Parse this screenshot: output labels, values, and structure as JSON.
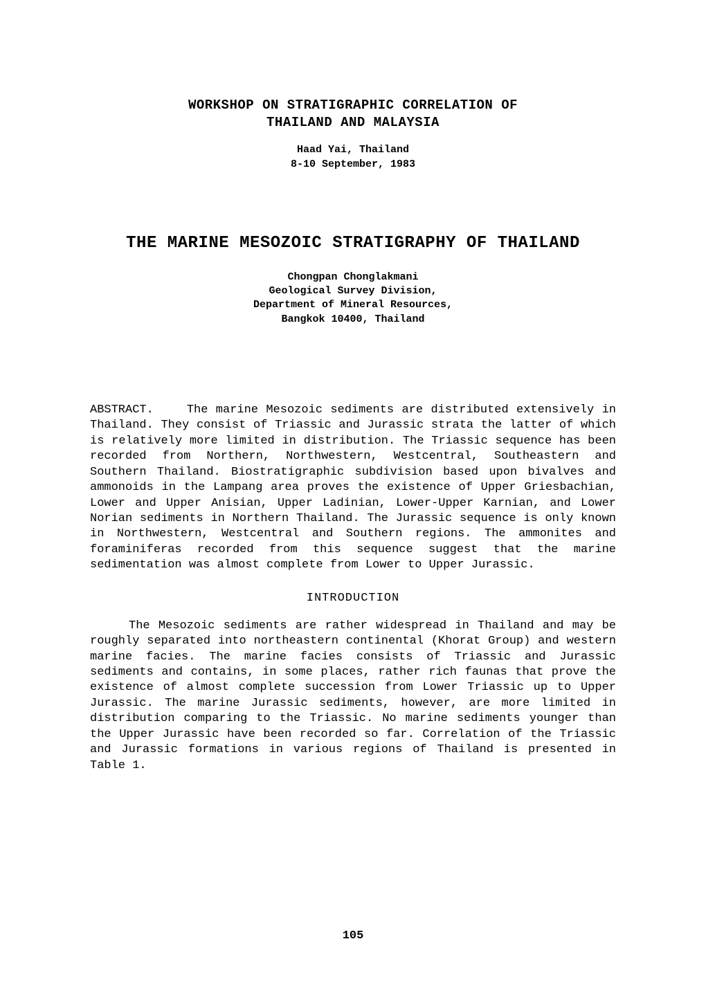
{
  "workshop": {
    "heading_line1": "WORKSHOP ON STRATIGRAPHIC CORRELATION OF",
    "heading_line2": "THAILAND AND MALAYSIA",
    "location": "Haad Yai, Thailand",
    "dates": "8-10 September, 1983"
  },
  "paper": {
    "title": "THE MARINE MESOZOIC STRATIGRAPHY OF THAILAND",
    "author": "Chongpan Chonglakmani",
    "affiliation_line1": "Geological Survey Division,",
    "affiliation_line2": "Department of Mineral Resources,",
    "affiliation_line3": "Bangkok 10400, Thailand"
  },
  "abstract": {
    "label": "ABSTRACT.",
    "text": "The marine Mesozoic sediments are distributed extensively in Thailand. They consist of Triassic and Jurassic strata the latter of which is relatively more limited in distribution. The Triassic sequence has been recorded from Northern, Northwestern, Westcentral, Southeastern and Southern Thailand. Biostratigraphic subdivision based upon bivalves and ammonoids in the Lampang area proves the existence of Upper Griesbachian, Lower and Upper Anisian, Upper Ladinian, Lower-Upper Karnian, and Lower Norian sediments in Northern Thailand. The Jurassic sequence is only known in Northwestern, Westcentral and Southern regions. The ammonites and foraminiferas recorded from this sequence suggest that the marine sedimentation was almost complete from Lower to Upper Jurassic."
  },
  "sections": {
    "introduction": {
      "heading": "INTRODUCTION",
      "paragraph": "The Mesozoic sediments are rather widespread in Thailand and may be roughly separated into northeastern continental (Khorat Group) and western marine facies. The marine facies consists of Triassic and Jurassic sediments and contains, in some places, rather rich faunas that prove the existence of almost complete succession from Lower Triassic up to Upper Jurassic. The marine Jurassic sediments, however, are more limited in distribution comparing to the Triassic. No marine sediments younger than the Upper Jurassic have been recorded so far. Correlation of the Triassic and Jurassic formations in various regions of Thailand is presented in Table 1."
    }
  },
  "page_number": "105",
  "style": {
    "background_color": "#ffffff",
    "text_color": "#000000",
    "body_fontsize": 17,
    "title_fontsize": 24,
    "heading_fontsize": 19,
    "meta_fontsize": 15,
    "font_family": "Courier New, Courier, monospace",
    "line_height": 1.32
  }
}
